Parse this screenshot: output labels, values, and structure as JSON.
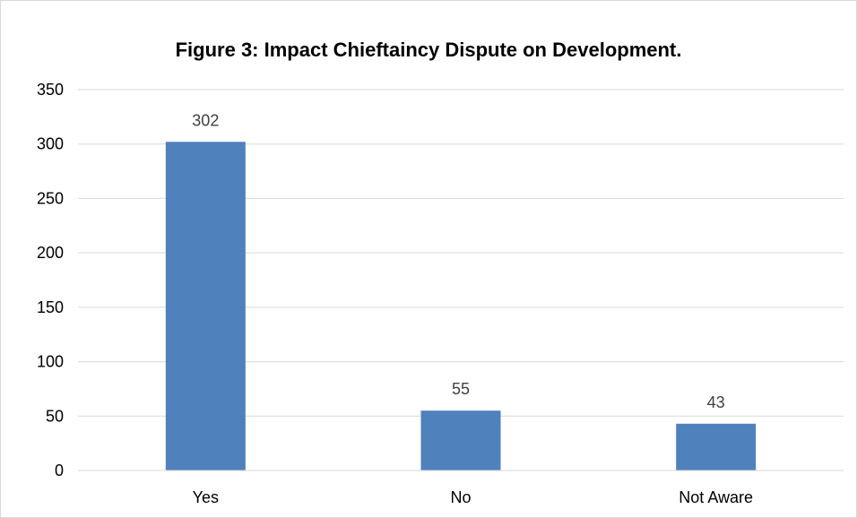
{
  "chart_data": {
    "type": "bar",
    "title": "Figure 3: Impact Chieftaincy Dispute on Development.",
    "categories": [
      "Yes",
      "No",
      "Not Aware"
    ],
    "values": [
      302,
      55,
      43
    ],
    "data_labels": [
      "302",
      "55",
      "43"
    ],
    "ylim": [
      0,
      350
    ],
    "yticks": [
      0,
      50,
      100,
      150,
      200,
      250,
      300,
      350
    ],
    "xlabel": "",
    "ylabel": "",
    "grid": true,
    "legend": "none",
    "bar_color": "#4f81bd",
    "grid_color": "#d9d9d9"
  }
}
